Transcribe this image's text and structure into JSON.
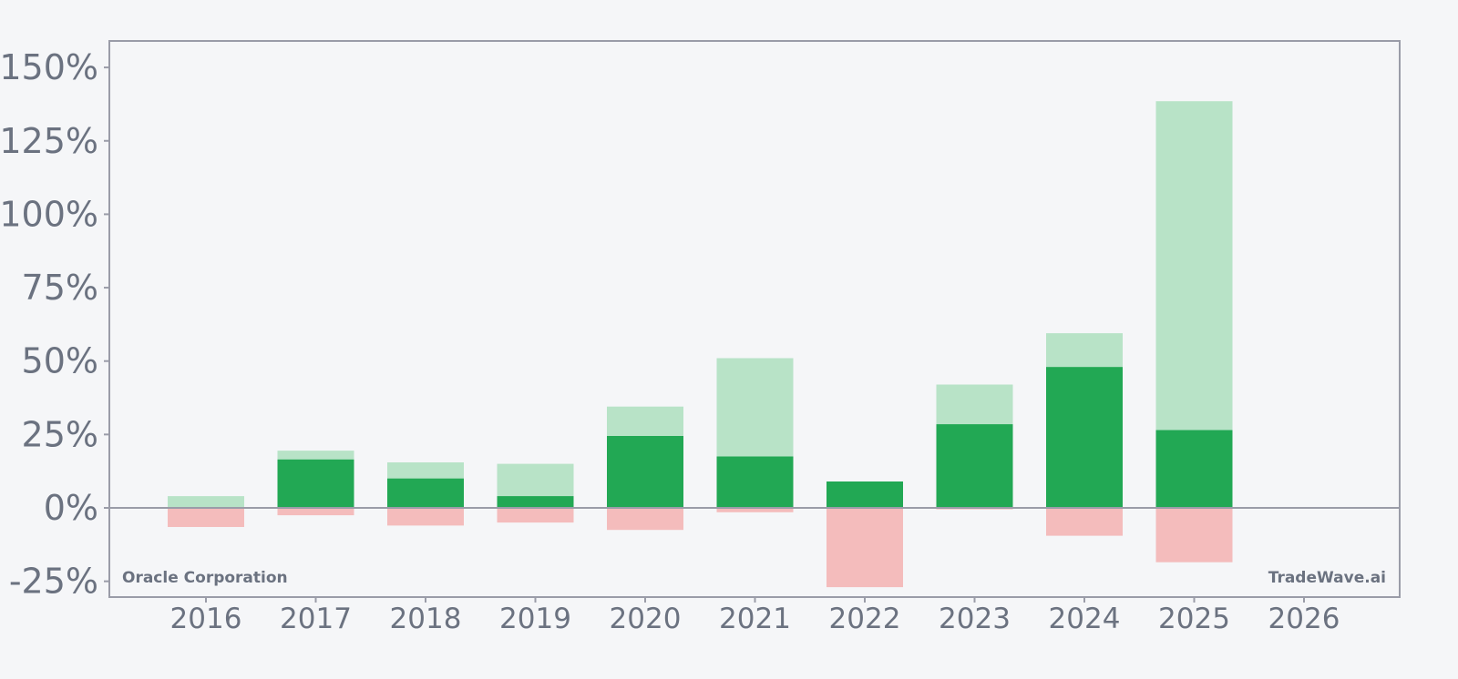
{
  "chart_data": {
    "type": "bar",
    "title": "",
    "xlabel": "",
    "ylabel": "",
    "categories": [
      "2016",
      "2017",
      "2018",
      "2019",
      "2020",
      "2021",
      "2022",
      "2023",
      "2024",
      "2025",
      "2026"
    ],
    "series": [
      {
        "key": "max_gain",
        "values": [
          4,
          19.5,
          15.5,
          15,
          34.5,
          51,
          9,
          42,
          59.5,
          138.5,
          null
        ]
      },
      {
        "key": "annual_return",
        "values": [
          0,
          16.5,
          10,
          4,
          24.5,
          17.5,
          9,
          28.5,
          48,
          26.5,
          null
        ]
      },
      {
        "key": "max_drawdown",
        "values": [
          -6.5,
          -2.5,
          -6,
          -5,
          -7.5,
          -1.5,
          -27,
          -0.5,
          -9.5,
          -18.5,
          null
        ]
      }
    ],
    "y_ticks": [
      150,
      125,
      100,
      75,
      50,
      25,
      0,
      -25
    ],
    "y_tick_labels": [
      "150%",
      "125%",
      "100%",
      "75%",
      "50%",
      "25%",
      "0%",
      "-25%"
    ],
    "ylim": [
      -30,
      160
    ],
    "grid": false,
    "colors": {
      "max_gain": "#b8e3c7",
      "annual_return": "#22a854",
      "max_drawdown": "#f4bcbc",
      "axis": "#9a9ca8",
      "text": "#6b7280"
    },
    "annotations": {
      "left": "Oracle Corporation",
      "right": "TradeWave.ai"
    }
  }
}
